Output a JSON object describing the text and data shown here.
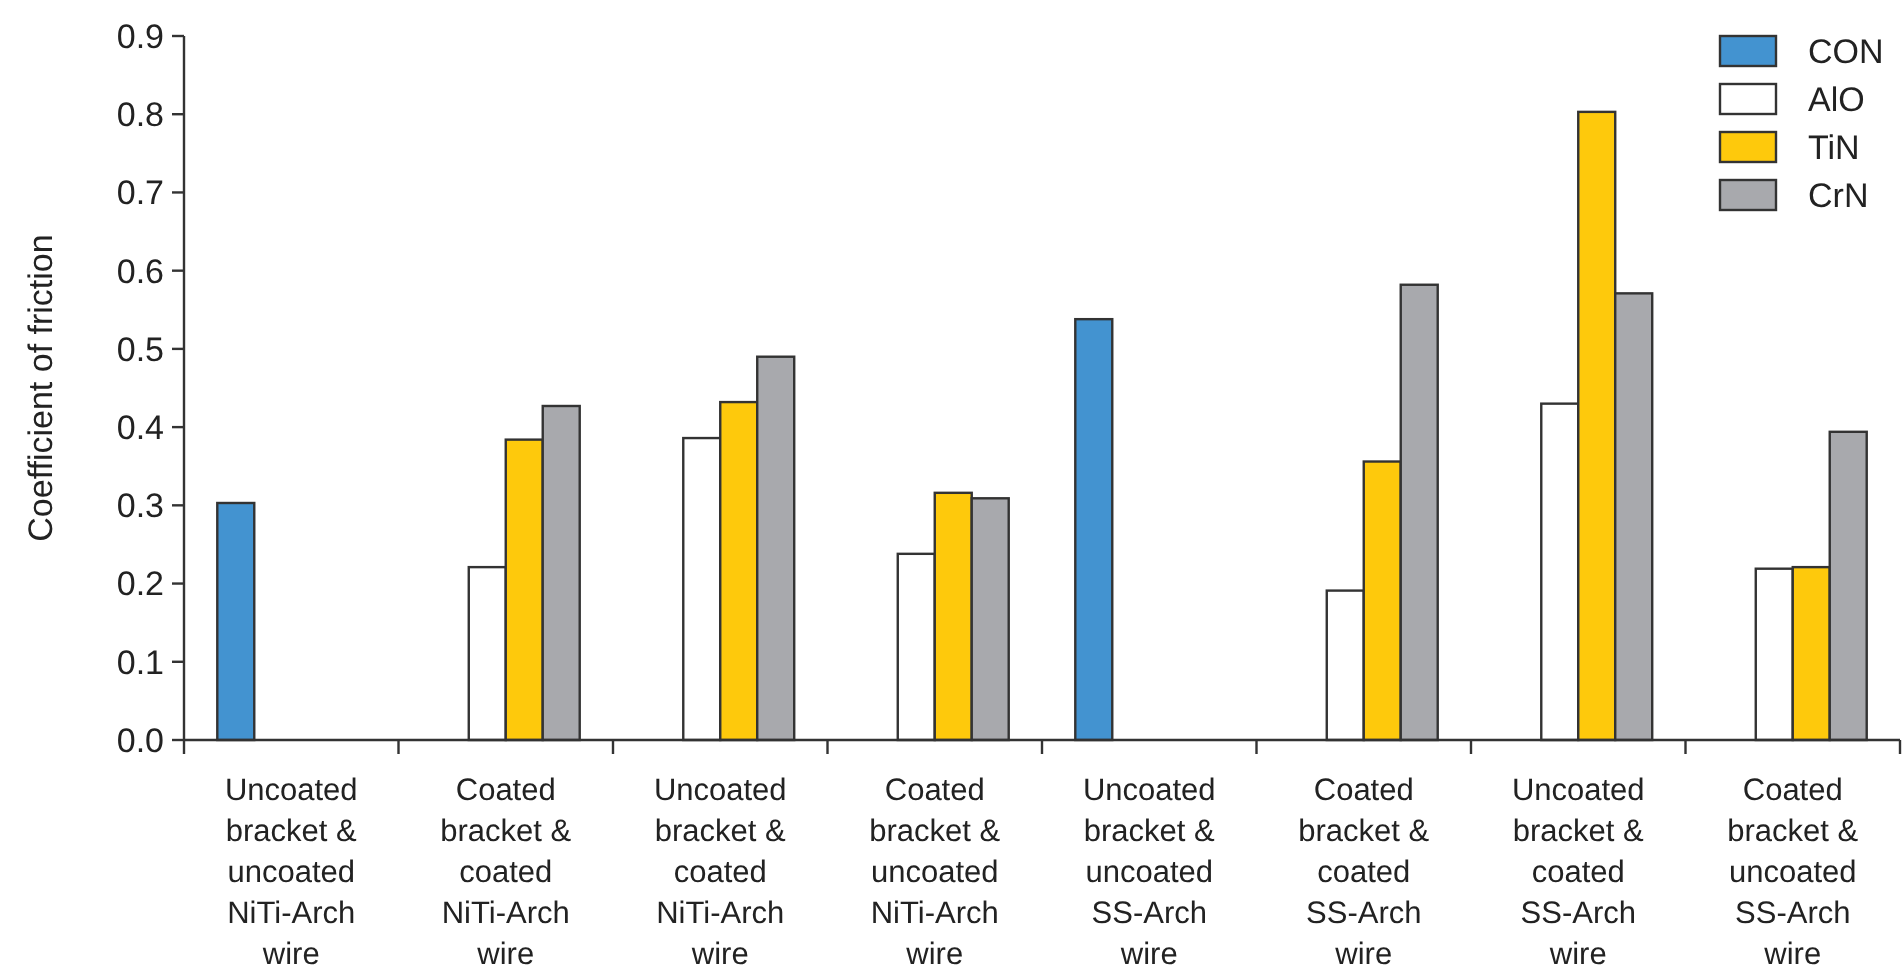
{
  "chart_data": {
    "type": "bar",
    "ylabel": "Coefficient of friction",
    "ylim": [
      0,
      0.9
    ],
    "yticks": [
      {
        "value": 0,
        "label": "0.0"
      },
      0.1,
      0.2,
      0.3,
      0.4,
      0.5,
      0.6,
      0.7,
      0.8,
      0.9
    ],
    "grid": false,
    "legend": "top right",
    "categories": [
      "Uncoated\nbracket &\nuncoated\nNiTi-Arch\nwire",
      "Coated\nbracket &\ncoated\nNiTi-Arch\nwire",
      "Uncoated\nbracket &\ncoated\nNiTi-Arch\nwire",
      "Coated\nbracket &\nuncoated\nNiTi-Arch\nwire",
      "Uncoated\nbracket &\nuncoated\nSS-Arch\nwire",
      "Coated\nbracket &\ncoated\nSS-Arch\nwire",
      "Uncoated\nbracket &\ncoated\nSS-Arch\nwire",
      "Coated\nbracket &\nuncoated\nSS-Arch\nwire"
    ],
    "series": [
      {
        "name": "CON",
        "color": "#4393d0",
        "values": [
          0.303,
          null,
          null,
          null,
          0.538,
          null,
          null,
          null
        ]
      },
      {
        "name": "AlO",
        "color": "#ffffff",
        "values": [
          null,
          0.221,
          0.386,
          0.238,
          null,
          0.191,
          0.43,
          0.219
        ]
      },
      {
        "name": "TiN",
        "color": "#fec90c",
        "values": [
          null,
          0.384,
          0.432,
          0.316,
          null,
          0.356,
          0.803,
          0.221
        ]
      },
      {
        "name": "CrN",
        "color": "#a8a9ad",
        "values": [
          null,
          0.427,
          0.49,
          0.309,
          null,
          0.582,
          0.571,
          0.394
        ]
      }
    ]
  }
}
